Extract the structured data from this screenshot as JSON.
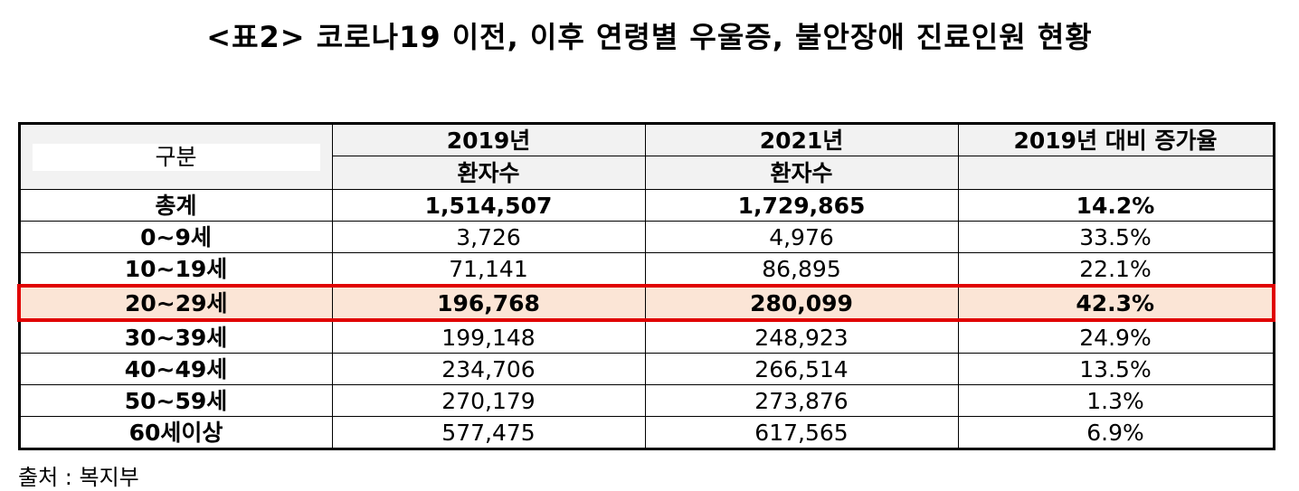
{
  "title": "<표2> 코로나19 이전, 이후 연령별 우울증, 불안장애 진료인원 현황",
  "table": {
    "header": {
      "category": "구분",
      "col1_year": "2019년",
      "col1_sub": "환자수",
      "col2_year": "2021년",
      "col2_sub": "환자수",
      "col3": "2019년 대비 증가율"
    },
    "rows": [
      {
        "label": "총계",
        "v2019": "1,514,507",
        "v2021": "1,729,865",
        "rate": "14.2%"
      },
      {
        "label": "0~9세",
        "v2019": "3,726",
        "v2021": "4,976",
        "rate": "33.5%"
      },
      {
        "label": "10~19세",
        "v2019": "71,141",
        "v2021": "86,895",
        "rate": "22.1%"
      },
      {
        "label": "20~29세",
        "v2019": "196,768",
        "v2021": "280,099",
        "rate": "42.3%"
      },
      {
        "label": "30~39세",
        "v2019": "199,148",
        "v2021": "248,923",
        "rate": "24.9%"
      },
      {
        "label": "40~49세",
        "v2019": "234,706",
        "v2021": "266,514",
        "rate": "13.5%"
      },
      {
        "label": "50~59세",
        "v2019": "270,179",
        "v2021": "273,876",
        "rate": "1.3%"
      },
      {
        "label": "60세이상",
        "v2019": "577,475",
        "v2021": "617,565",
        "rate": "6.9%"
      }
    ]
  },
  "source": "출처 : 복지부",
  "colors": {
    "highlight_fill": "#fbe5d6",
    "highlight_border": "#e00000",
    "header_fill": "#f2f2f2"
  }
}
